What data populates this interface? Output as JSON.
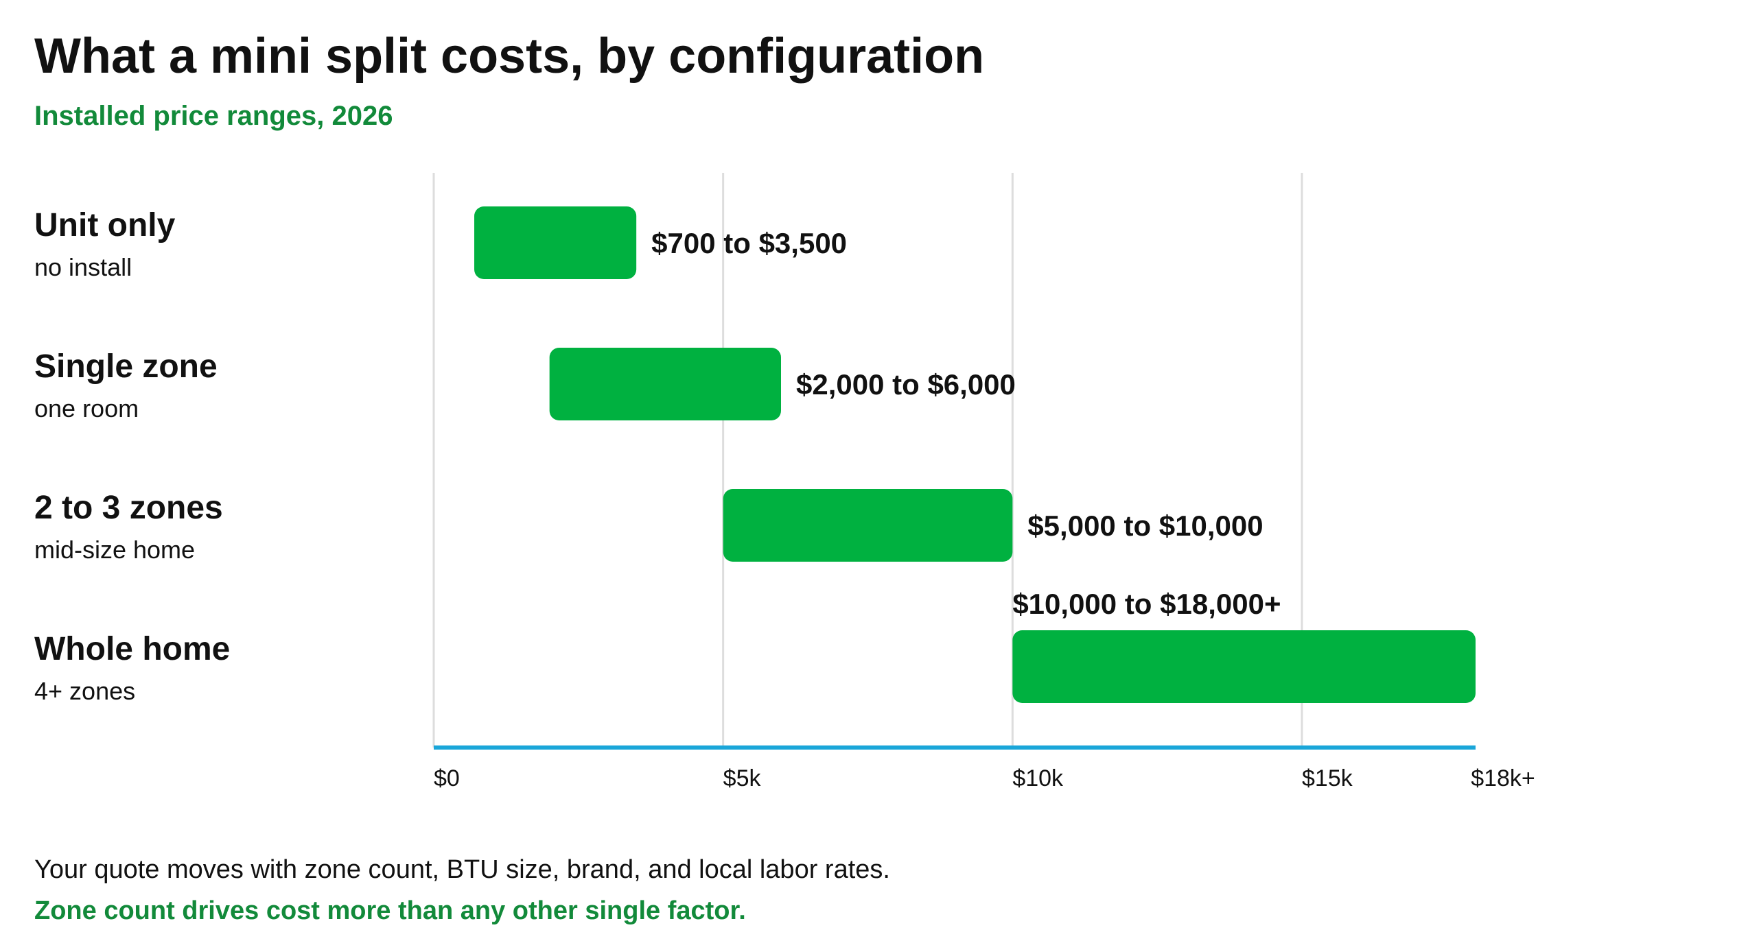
{
  "colors": {
    "bar": "#00b140",
    "accent_text": "#128a3a",
    "axis_line": "#1aa6d9",
    "gridline": "#dddddd",
    "text": "#111111"
  },
  "chart_data": {
    "type": "bar",
    "orientation": "horizontal-range",
    "title": "What a mini split costs, by configuration",
    "subtitle": "Installed price ranges, 2026",
    "categories": [
      {
        "label": "Unit only",
        "sublabel": "no install",
        "low": 700,
        "high": 3500,
        "range_label": "$700 to $3,500"
      },
      {
        "label": "Single zone",
        "sublabel": "one room",
        "low": 2000,
        "high": 6000,
        "range_label": "$2,000 to $6,000"
      },
      {
        "label": "2 to 3 zones",
        "sublabel": "mid-size home",
        "low": 5000,
        "high": 10000,
        "range_label": "$5,000 to $10,000"
      },
      {
        "label": "Whole home",
        "sublabel": "4+ zones",
        "low": 10000,
        "high": 18000,
        "range_label": "$10,000 to $18,000+"
      }
    ],
    "x_ticks": [
      {
        "value": 0,
        "label": "$0"
      },
      {
        "value": 5000,
        "label": "$5k"
      },
      {
        "value": 10000,
        "label": "$10k"
      },
      {
        "value": 15000,
        "label": "$15k"
      },
      {
        "value": 18000,
        "label": "$18k+"
      }
    ],
    "xlim": [
      0,
      18000
    ],
    "grid": true,
    "legend": "none"
  },
  "footnote": {
    "line1": "Your quote moves with zone count, BTU size, brand, and local labor rates.",
    "line2": "Zone count drives cost more than any other single factor."
  }
}
